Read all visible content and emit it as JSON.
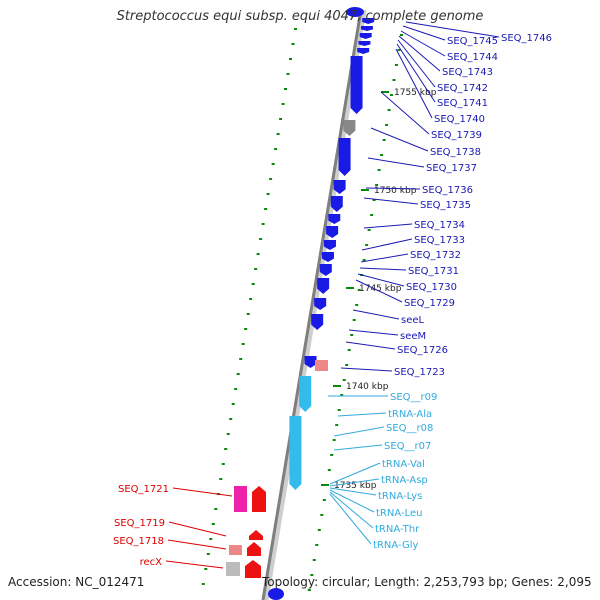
{
  "title": "Streptococcus equi subsp. equi 4047, complete genome",
  "accession": "Accession: NC_012471",
  "summary": "Topology: circular; Length: 2,253,793 bp; Genes: 2,095",
  "colors": {
    "backbone": "#8c8c8c",
    "cds": "#1a1ae6",
    "rna": "#33bbee",
    "other": "#888888",
    "ticks": "#0a8a0a",
    "label_cds": "#1a1ab3",
    "label_rna": "#33aadd",
    "label_red": "#dd0000"
  },
  "ticks": [
    "1755 kbp",
    "1750 kbp",
    "1745 kbp",
    "1740 kbp",
    "1735 kbp"
  ],
  "labels_right": [
    "SEQ_1746",
    "SEQ_1745",
    "SEQ_1744",
    "SEQ_1743",
    "SEQ_1742",
    "SEQ_1741",
    "SEQ_1740",
    "SEQ_1739",
    "SEQ_1738",
    "SEQ_1737",
    "SEQ_1736",
    "SEQ_1735",
    "SEQ_1734",
    "SEQ_1733",
    "SEQ_1732",
    "SEQ_1731",
    "SEQ_1730",
    "SEQ_1729",
    "seeL",
    "seeM",
    "SEQ_1726",
    "SEQ_1723"
  ],
  "labels_rna": [
    "SEQ__r09",
    "tRNA-Ala",
    "SEQ__r08",
    "SEQ__r07",
    "tRNA-Val",
    "tRNA-Asp",
    "tRNA-Lys",
    "tRNA-Leu",
    "tRNA-Thr",
    "tRNA-Gly"
  ],
  "labels_left": [
    "SEQ_1721",
    "SEQ_1719",
    "SEQ_1718",
    "recX"
  ]
}
